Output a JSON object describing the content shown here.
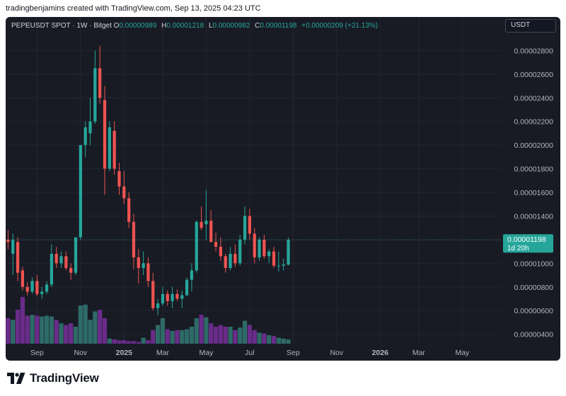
{
  "header": {
    "creator_text": "tradingbenjamins created with TradingView.com, Sep 13, 2025 04:23 UTC"
  },
  "legend": {
    "symbol": "PEPEUSDT SPOT · 1W · Bitget",
    "o_label": "O",
    "o_value": "0.00000989",
    "h_label": "H",
    "h_value": "0.00001218",
    "l_label": "L",
    "l_value": "0.00000982",
    "c_label": "C",
    "c_value": "0.00001198",
    "change": "+0.00000209 (+21.13%)"
  },
  "currency_button": {
    "label": "USDT"
  },
  "price_tag": {
    "price": "0.00001198",
    "countdown": "1d 20h"
  },
  "colors": {
    "up": "#26a69a",
    "down": "#ef5350",
    "vol_up": "#2e6b68",
    "vol_down": "#6a2c8a",
    "background": "#181b24",
    "grid": "#222632",
    "axis_text": "#b2b5be"
  },
  "footer": {
    "brand": "TradingView"
  },
  "chart_data": {
    "type": "candlestick",
    "interval": "1W",
    "y_axis": {
      "ticks": [
        4e-06,
        6e-06,
        8e-06,
        1e-05,
        1.2e-05,
        1.4e-05,
        1.6e-05,
        1.8e-05,
        2e-05,
        2.2e-05,
        2.4e-05,
        2.6e-05,
        2.8e-05
      ],
      "tick_labels": [
        "0.00000400",
        "0.00000600",
        "0.00000800",
        "0.00001000",
        "0.00001200",
        "0.00001400",
        "0.00001600",
        "0.00001800",
        "0.00002000",
        "0.00002200",
        "0.00002400",
        "0.00002600",
        "0.00002800"
      ],
      "range": [
        3.2e-06,
        2.94e-05
      ]
    },
    "x_axis": {
      "labels": [
        "Sep",
        "Nov",
        "2025",
        "Mar",
        "May",
        "Jul",
        "Sep",
        "Nov",
        "2026",
        "Mar",
        "May"
      ],
      "label_weeks": [
        6,
        15,
        24,
        32,
        41,
        50,
        59,
        68,
        77,
        85,
        94
      ],
      "bold_labels": [
        "2025",
        "2026"
      ],
      "range_weeks": [
        -0.5,
        102
      ]
    },
    "candles": [
      {
        "o": 1.2e-05,
        "h": 1.28e-05,
        "l": 1.12e-05,
        "c": 1.18e-05,
        "v": 0.3
      },
      {
        "o": 1.08e-05,
        "h": 1.25e-05,
        "l": 9e-06,
        "c": 1.2e-05,
        "v": 0.28
      },
      {
        "o": 1.18e-05,
        "h": 1.22e-05,
        "l": 8.5e-06,
        "c": 9.2e-06,
        "v": 0.4
      },
      {
        "o": 9.4e-06,
        "h": 9.7e-06,
        "l": 7.7e-06,
        "c": 8e-06,
        "v": 0.55
      },
      {
        "o": 8e-06,
        "h": 8.4e-06,
        "l": 7.3e-06,
        "c": 7.6e-06,
        "v": 0.33
      },
      {
        "o": 7.6e-06,
        "h": 8.8e-06,
        "l": 7.4e-06,
        "c": 8.5e-06,
        "v": 0.34
      },
      {
        "o": 8.5e-06,
        "h": 9e-06,
        "l": 7.2e-06,
        "c": 7.4e-06,
        "v": 0.33
      },
      {
        "o": 7.4e-06,
        "h": 8e-06,
        "l": 7e-06,
        "c": 7.6e-06,
        "v": 0.32
      },
      {
        "o": 7.6e-06,
        "h": 8.5e-06,
        "l": 7.4e-06,
        "c": 8.2e-06,
        "v": 0.33
      },
      {
        "o": 8.2e-06,
        "h": 1.16e-05,
        "l": 8e-06,
        "c": 1.08e-05,
        "v": 0.32
      },
      {
        "o": 1.08e-05,
        "h": 1.14e-05,
        "l": 9.6e-06,
        "c": 1e-05,
        "v": 0.28
      },
      {
        "o": 1e-05,
        "h": 1.1e-05,
        "l": 9.6e-06,
        "c": 1.06e-05,
        "v": 0.24
      },
      {
        "o": 1.06e-05,
        "h": 1.1e-05,
        "l": 9.4e-06,
        "c": 9.6e-06,
        "v": 0.22
      },
      {
        "o": 9.6e-06,
        "h": 1e-05,
        "l": 8.6e-06,
        "c": 9.2e-06,
        "v": 0.24
      },
      {
        "o": 9.2e-06,
        "h": 1.2e-05,
        "l": 9e-06,
        "c": 1.22e-05,
        "v": 0.2
      },
      {
        "o": 1.22e-05,
        "h": 2e-05,
        "l": 1.2e-05,
        "c": 2e-05,
        "v": 0.45
      },
      {
        "o": 2e-05,
        "h": 2.2e-05,
        "l": 1.9e-05,
        "c": 2.15e-05,
        "v": 0.46
      },
      {
        "o": 2.1e-05,
        "h": 2.4e-05,
        "l": 2e-05,
        "c": 2.2e-05,
        "v": 0.28
      },
      {
        "o": 2.2e-05,
        "h": 2.8e-05,
        "l": 2.18e-05,
        "c": 2.65e-05,
        "v": 0.38
      },
      {
        "o": 2.65e-05,
        "h": 2.84e-05,
        "l": 2.35e-05,
        "c": 2.4e-05,
        "v": 0.4
      },
      {
        "o": 2.38e-05,
        "h": 2.5e-05,
        "l": 1.58e-05,
        "c": 1.8e-05,
        "v": 0.3
      },
      {
        "o": 1.8e-05,
        "h": 2.2e-05,
        "l": 1.78e-05,
        "c": 2.15e-05,
        "v": 0.06
      },
      {
        "o": 2.12e-05,
        "h": 2.2e-05,
        "l": 1.75e-05,
        "c": 1.8e-05,
        "v": 0.05
      },
      {
        "o": 1.78e-05,
        "h": 1.85e-05,
        "l": 1.58e-05,
        "c": 1.65e-05,
        "v": 0.04
      },
      {
        "o": 1.65e-05,
        "h": 1.78e-05,
        "l": 1.5e-05,
        "c": 1.55e-05,
        "v": 0.04
      },
      {
        "o": 1.55e-05,
        "h": 1.6e-05,
        "l": 1.3e-05,
        "c": 1.35e-05,
        "v": 0.03
      },
      {
        "o": 1.35e-05,
        "h": 1.42e-05,
        "l": 9.5e-06,
        "c": 1.05e-05,
        "v": 0.03
      },
      {
        "o": 1.05e-05,
        "h": 1.12e-05,
        "l": 8.3e-06,
        "c": 9.6e-06,
        "v": 0.02
      },
      {
        "o": 9.6e-06,
        "h": 1.1e-05,
        "l": 9e-06,
        "c": 1e-05,
        "v": 0.07
      },
      {
        "o": 1e-05,
        "h": 1.05e-05,
        "l": 8e-06,
        "c": 8.5e-06,
        "v": 0.04
      },
      {
        "o": 8.5e-06,
        "h": 9.2e-06,
        "l": 6e-06,
        "c": 6.2e-06,
        "v": 0.16
      },
      {
        "o": 6.2e-06,
        "h": 7e-06,
        "l": 5.6e-06,
        "c": 6.6e-06,
        "v": 0.22
      },
      {
        "o": 6.6e-06,
        "h": 8e-06,
        "l": 6.4e-06,
        "c": 7.4e-06,
        "v": 0.3
      },
      {
        "o": 7.4e-06,
        "h": 7.7e-06,
        "l": 6.4e-06,
        "c": 6.8e-06,
        "v": 0.17
      },
      {
        "o": 6.8e-06,
        "h": 8e-06,
        "l": 6.2e-06,
        "c": 7.4e-06,
        "v": 0.15
      },
      {
        "o": 7.4e-06,
        "h": 7.8e-06,
        "l": 6.8e-06,
        "c": 7e-06,
        "v": 0.16
      },
      {
        "o": 7e-06,
        "h": 7.7e-06,
        "l": 6.2e-06,
        "c": 7.3e-06,
        "v": 0.16
      },
      {
        "o": 7.3e-06,
        "h": 8.8e-06,
        "l": 7.2e-06,
        "c": 8.6e-06,
        "v": 0.17
      },
      {
        "o": 8.6e-06,
        "h": 1e-05,
        "l": 7.6e-06,
        "c": 9.4e-06,
        "v": 0.2
      },
      {
        "o": 9.4e-06,
        "h": 1.36e-05,
        "l": 9.2e-06,
        "c": 1.35e-05,
        "v": 0.3
      },
      {
        "o": 1.35e-05,
        "h": 1.48e-05,
        "l": 1.28e-05,
        "c": 1.3e-05,
        "v": 0.34
      },
      {
        "o": 1.33e-05,
        "h": 1.62e-05,
        "l": 1.2e-05,
        "c": 1.36e-05,
        "v": 0.31
      },
      {
        "o": 1.36e-05,
        "h": 1.45e-05,
        "l": 1.18e-05,
        "c": 1.18e-05,
        "v": 0.24
      },
      {
        "o": 1.18e-05,
        "h": 1.26e-05,
        "l": 1.1e-05,
        "c": 1.14e-05,
        "v": 0.2
      },
      {
        "o": 1.14e-05,
        "h": 1.22e-05,
        "l": 1.02e-05,
        "c": 1.06e-05,
        "v": 0.22
      },
      {
        "o": 1.06e-05,
        "h": 1.08e-05,
        "l": 9.2e-06,
        "c": 9.6e-06,
        "v": 0.2
      },
      {
        "o": 9.6e-06,
        "h": 1.14e-05,
        "l": 9.4e-06,
        "c": 1.08e-05,
        "v": 0.2
      },
      {
        "o": 1.08e-05,
        "h": 1.16e-05,
        "l": 9.7e-06,
        "c": 1e-05,
        "v": 0.16
      },
      {
        "o": 1e-05,
        "h": 1.24e-05,
        "l": 9.8e-06,
        "c": 1.2e-05,
        "v": 0.19
      },
      {
        "o": 1.2e-05,
        "h": 1.48e-05,
        "l": 1.16e-05,
        "c": 1.4e-05,
        "v": 0.27
      },
      {
        "o": 1.4e-05,
        "h": 1.46e-05,
        "l": 1.2e-05,
        "c": 1.25e-05,
        "v": 0.22
      },
      {
        "o": 1.25e-05,
        "h": 1.3e-05,
        "l": 1e-05,
        "c": 1.05e-05,
        "v": 0.16
      },
      {
        "o": 1.05e-05,
        "h": 1.22e-05,
        "l": 1.02e-05,
        "c": 1.2e-05,
        "v": 0.13
      },
      {
        "o": 1.2e-05,
        "h": 1.24e-05,
        "l": 1.04e-05,
        "c": 1.06e-05,
        "v": 0.12
      },
      {
        "o": 1.06e-05,
        "h": 1.12e-05,
        "l": 1e-05,
        "c": 1.1e-05,
        "v": 0.1
      },
      {
        "o": 1.1e-05,
        "h": 1.14e-05,
        "l": 9.6e-06,
        "c": 9.8e-06,
        "v": 0.09
      },
      {
        "o": 9.8e-06,
        "h": 1.1e-05,
        "l": 9.3e-06,
        "c": 9.8e-06,
        "v": 0.07
      },
      {
        "o": 9.8e-06,
        "h": 1.04e-05,
        "l": 9.4e-06,
        "c": 9.9e-06,
        "v": 0.06
      },
      {
        "o": 9.89e-06,
        "h": 1.218e-05,
        "l": 9.82e-06,
        "c": 1.198e-05,
        "v": 0.05
      }
    ]
  }
}
